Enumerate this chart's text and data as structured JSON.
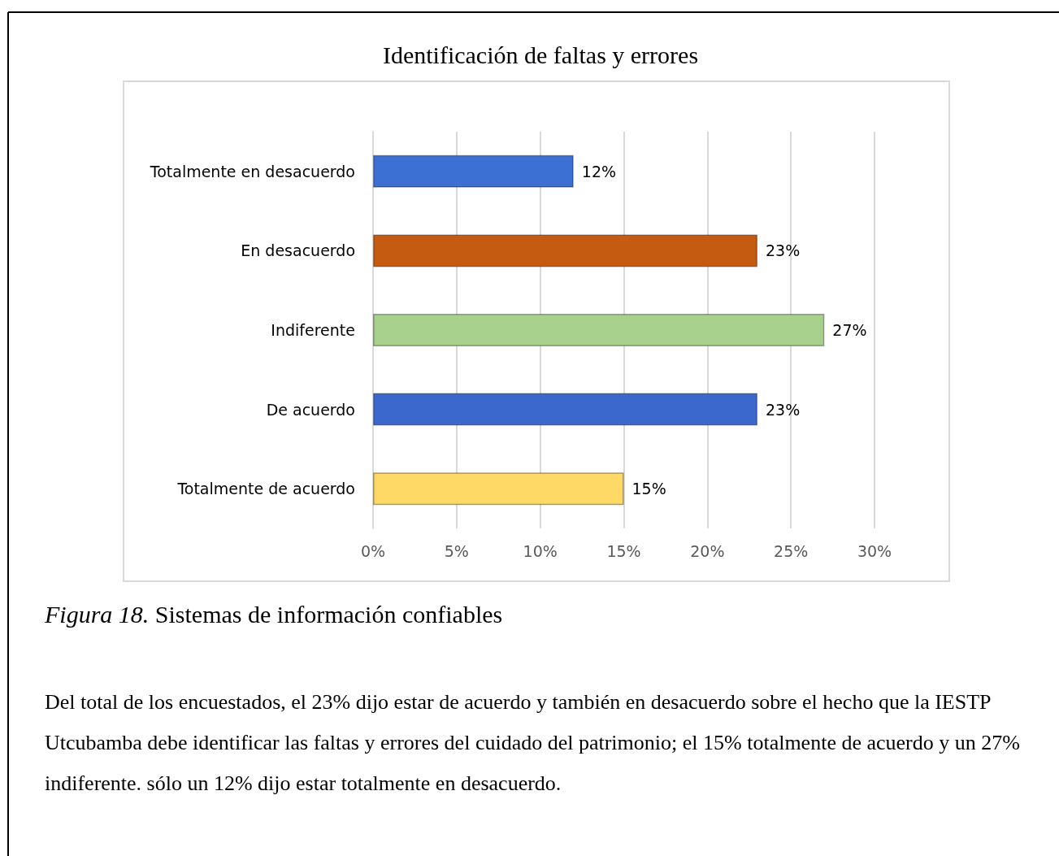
{
  "chart_data": {
    "type": "bar",
    "orientation": "horizontal",
    "title": "Identificación de faltas y errores",
    "categories": [
      "Totalmente en desacuerdo",
      "En desacuerdo",
      "Indiferente",
      "De acuerdo",
      "Totalmente de acuerdo"
    ],
    "values": [
      12,
      23,
      27,
      23,
      15
    ],
    "colors": [
      "#3c70d2",
      "#c55a11",
      "#a9d18e",
      "#3a68cc",
      "#ffd966"
    ],
    "value_labels": [
      "12%",
      "23%",
      "27%",
      "23%",
      "15%"
    ],
    "xlim": [
      0,
      30
    ],
    "xticks": [
      {
        "value": 0,
        "label": "0%"
      },
      {
        "value": 5,
        "label": "5%"
      },
      {
        "value": 10,
        "label": "10%"
      },
      {
        "value": 15,
        "label": "15%"
      },
      {
        "value": 20,
        "label": "20%"
      },
      {
        "value": 25,
        "label": "25%"
      },
      {
        "value": 30,
        "label": "30%"
      }
    ],
    "grid": "x",
    "annotations": [
      "Figura 18. Sistemas de información confiables",
      "Del total de los encuestados, el 23% dijo estar de acuerdo y también en desacuerdo sobre el hecho que la IESTP Utcubamba debe identificar las faltas y errores del cuidado del patrimonio; el 15% totalmente de acuerdo y un 27% indiferente. sólo un 12% dijo estar totalmente en desacuerdo."
    ]
  }
}
